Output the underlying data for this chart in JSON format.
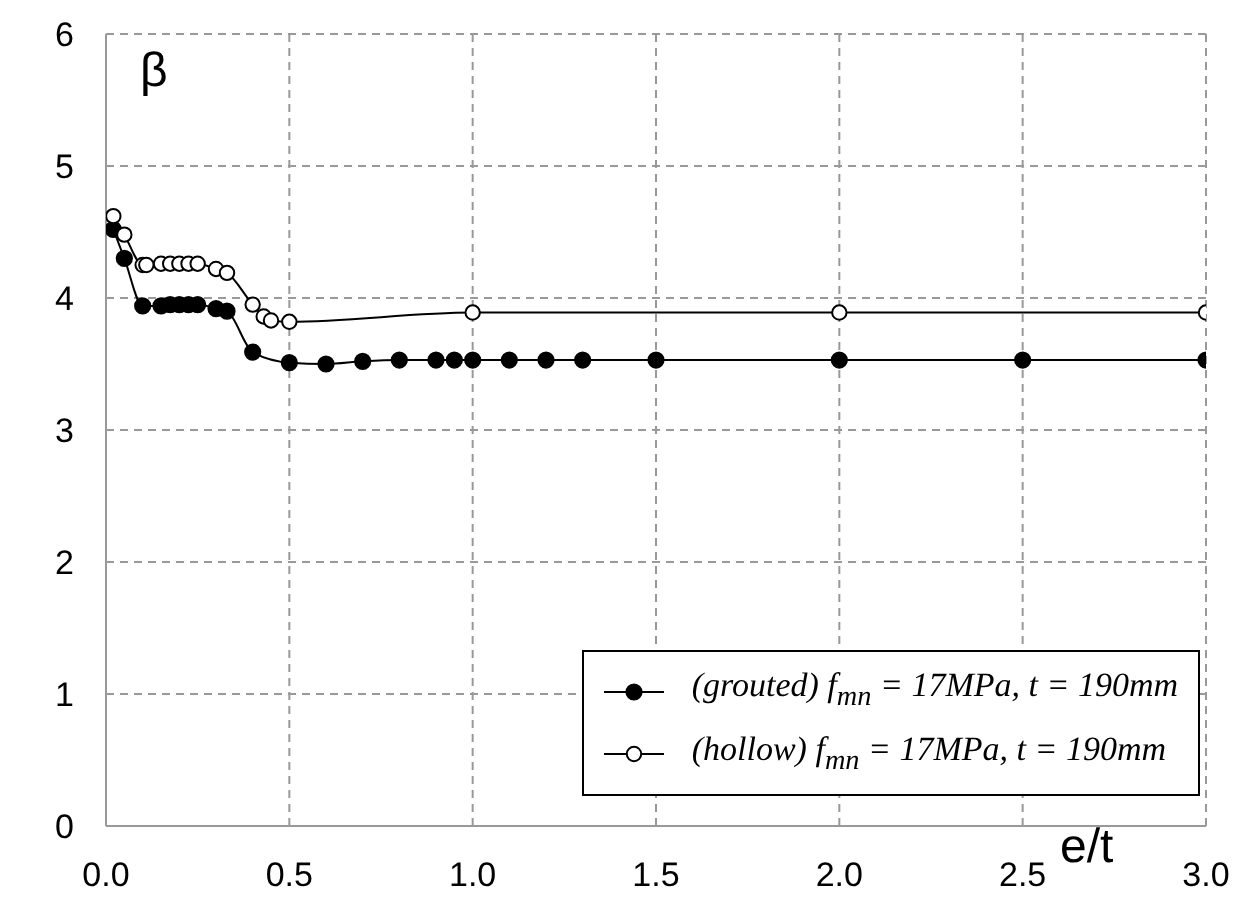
{
  "chart_data": {
    "type": "line",
    "xlabel": "e/t",
    "ylabel": "β",
    "xlim": [
      0,
      3
    ],
    "xticks": [
      {
        "value": 0,
        "label": "0.0"
      },
      0.5,
      {
        "value": 1,
        "label": "1.0"
      },
      1.5,
      {
        "value": 2,
        "label": "2.0"
      },
      2.5,
      {
        "value": 3,
        "label": "3.0"
      }
    ],
    "ylim": [
      0,
      6
    ],
    "yticks": [
      0,
      1,
      2,
      3,
      4,
      5,
      6
    ],
    "grid": true,
    "legend": "bottom right",
    "marker": "circle",
    "line_style": "solid",
    "series": [
      {
        "name": "(grouted) f$_{mn}$ = 17MPa, t = 190mm",
        "color": "#000000",
        "x": [
          0.02,
          0.05,
          0.1,
          0.15,
          0.175,
          0.2,
          0.225,
          0.25,
          0.3,
          0.33,
          0.4,
          0.5,
          0.6,
          0.7,
          0.8,
          0.9,
          0.95,
          1.0,
          1.1,
          1.2,
          1.3,
          1.5,
          2.0,
          2.5,
          3.0
        ],
        "values": [
          4.52,
          4.3,
          3.94,
          3.94,
          3.95,
          3.95,
          3.95,
          3.95,
          3.92,
          3.9,
          3.59,
          3.51,
          3.5,
          3.52,
          3.53,
          3.53,
          3.53,
          3.53,
          3.53,
          3.53,
          3.53,
          3.53,
          3.53,
          3.53,
          3.53
        ]
      },
      {
        "name": "(hollow) f$_{mn}$ = 17MPa, t = 190mm",
        "color": "#000000",
        "x": [
          0.02,
          0.05,
          0.1,
          0.11,
          0.15,
          0.175,
          0.2,
          0.225,
          0.25,
          0.3,
          0.33,
          0.4,
          0.43,
          0.45,
          0.5,
          1.0,
          2.0,
          3.0
        ],
        "values": [
          4.62,
          4.48,
          4.25,
          4.25,
          4.26,
          4.26,
          4.26,
          4.26,
          4.26,
          4.22,
          4.19,
          3.95,
          3.86,
          3.83,
          3.82,
          3.89,
          3.89,
          3.89
        ]
      }
    ]
  }
}
